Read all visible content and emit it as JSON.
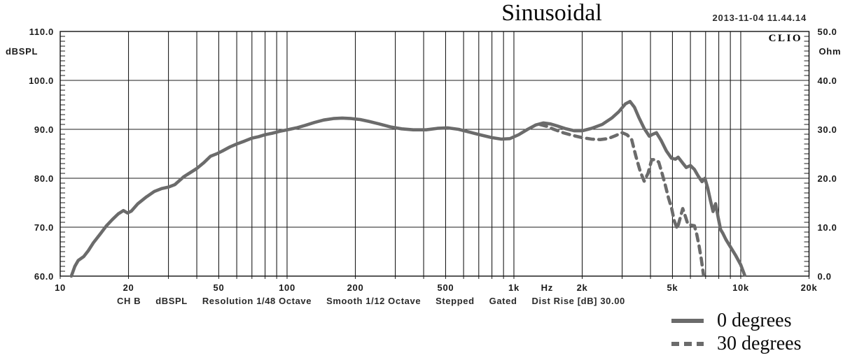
{
  "header": {
    "title": "Sinusoidal",
    "datetime": "2013-11-04 11.44.14",
    "brand": "CLIO"
  },
  "status_bar": {
    "segments": [
      "CH B",
      "dBSPL",
      "Resolution 1/48 Octave",
      "Smooth 1/12 Octave",
      "Stepped",
      "Gated",
      "Dist Rise [dB] 30.00"
    ]
  },
  "legend": {
    "items": [
      {
        "label": "0 degrees",
        "style": "solid"
      },
      {
        "label": "30 degrees",
        "style": "dashed"
      }
    ]
  },
  "chart_data": {
    "type": "line",
    "title": "Sinusoidal",
    "x_axis": {
      "scale": "log",
      "min": 10,
      "max": 20000,
      "unit": "Hz",
      "gridlines": [
        20,
        30,
        40,
        50,
        60,
        70,
        80,
        90,
        100,
        200,
        300,
        400,
        500,
        600,
        700,
        800,
        900,
        1000,
        2000,
        3000,
        4000,
        5000,
        6000,
        7000,
        8000,
        9000,
        10000,
        20000
      ],
      "tick_labels": [
        {
          "f": 10,
          "label": "10"
        },
        {
          "f": 20,
          "label": "20"
        },
        {
          "f": 50,
          "label": "50"
        },
        {
          "f": 100,
          "label": "100"
        },
        {
          "f": 200,
          "label": "200"
        },
        {
          "f": 500,
          "label": "500"
        },
        {
          "f": 1000,
          "label": "1k"
        },
        {
          "f": 1400,
          "label": "Hz"
        },
        {
          "f": 2000,
          "label": "2k"
        },
        {
          "f": 5000,
          "label": "5k"
        },
        {
          "f": 10000,
          "label": "10k"
        },
        {
          "f": 20000,
          "label": "20k"
        }
      ]
    },
    "y_left": {
      "label": "dBSPL",
      "min": 60,
      "max": 110,
      "major_step": 10,
      "minor_step": 1,
      "tick_labels": [
        {
          "v": 110,
          "label": "110.0"
        },
        {
          "v": 100,
          "label": "100.0"
        },
        {
          "v": 90,
          "label": "90.0"
        },
        {
          "v": 80,
          "label": "80.0"
        },
        {
          "v": 70,
          "label": "70.0"
        },
        {
          "v": 60,
          "label": "60.0"
        }
      ]
    },
    "y_right": {
      "label": "Ohm",
      "min": 0,
      "max": 50,
      "major_step": 10,
      "minor_step": 1,
      "tick_labels": [
        {
          "v": 50,
          "label": "50.0"
        },
        {
          "v": 40,
          "label": "40.0"
        },
        {
          "v": 30,
          "label": "30.0"
        },
        {
          "v": 20,
          "label": "20.0"
        },
        {
          "v": 10,
          "label": "10.0"
        },
        {
          "v": 0,
          "label": "0.0"
        }
      ]
    },
    "colors": {
      "curve": "#6b6b6b",
      "grid": "#1c1c1c",
      "border": "#111111"
    },
    "grid": true,
    "legend_position": "bottom-right",
    "series": [
      {
        "name": "0 degrees",
        "style": "solid",
        "points": [
          [
            11.2,
            60.0
          ],
          [
            11.6,
            62.0
          ],
          [
            12.0,
            63.2
          ],
          [
            12.7,
            64.0
          ],
          [
            13.3,
            65.2
          ],
          [
            14,
            66.8
          ],
          [
            15,
            68.6
          ],
          [
            16,
            70.3
          ],
          [
            17,
            71.6
          ],
          [
            18,
            72.7
          ],
          [
            19,
            73.4
          ],
          [
            19.8,
            72.9
          ],
          [
            20.6,
            73.3
          ],
          [
            22,
            74.8
          ],
          [
            24,
            76.2
          ],
          [
            26,
            77.3
          ],
          [
            28,
            77.9
          ],
          [
            30,
            78.2
          ],
          [
            32,
            78.7
          ],
          [
            33.5,
            79.5
          ],
          [
            35,
            80.3
          ],
          [
            37,
            81.0
          ],
          [
            40,
            82.0
          ],
          [
            43,
            83.2
          ],
          [
            46,
            84.5
          ],
          [
            49,
            85.0
          ],
          [
            52,
            85.6
          ],
          [
            56,
            86.4
          ],
          [
            60,
            87.0
          ],
          [
            65,
            87.6
          ],
          [
            70,
            88.2
          ],
          [
            75,
            88.5
          ],
          [
            80,
            88.9
          ],
          [
            86,
            89.2
          ],
          [
            93,
            89.6
          ],
          [
            100,
            89.9
          ],
          [
            110,
            90.3
          ],
          [
            120,
            90.8
          ],
          [
            132,
            91.4
          ],
          [
            145,
            91.9
          ],
          [
            160,
            92.2
          ],
          [
            175,
            92.3
          ],
          [
            192,
            92.2
          ],
          [
            210,
            92.0
          ],
          [
            230,
            91.6
          ],
          [
            255,
            91.1
          ],
          [
            285,
            90.5
          ],
          [
            320,
            90.1
          ],
          [
            360,
            89.9
          ],
          [
            410,
            89.9
          ],
          [
            460,
            90.2
          ],
          [
            510,
            90.3
          ],
          [
            570,
            90.0
          ],
          [
            640,
            89.4
          ],
          [
            720,
            88.8
          ],
          [
            800,
            88.3
          ],
          [
            880,
            88.0
          ],
          [
            960,
            88.1
          ],
          [
            1050,
            88.9
          ],
          [
            1150,
            90.0
          ],
          [
            1250,
            90.9
          ],
          [
            1350,
            91.3
          ],
          [
            1450,
            91.1
          ],
          [
            1550,
            90.7
          ],
          [
            1700,
            90.1
          ],
          [
            1850,
            89.7
          ],
          [
            2000,
            89.7
          ],
          [
            2200,
            90.2
          ],
          [
            2450,
            91.0
          ],
          [
            2700,
            92.3
          ],
          [
            2900,
            93.6
          ],
          [
            3100,
            95.2
          ],
          [
            3250,
            95.7
          ],
          [
            3400,
            94.5
          ],
          [
            3550,
            92.5
          ],
          [
            3750,
            90.2
          ],
          [
            3950,
            88.6
          ],
          [
            4100,
            89.0
          ],
          [
            4250,
            89.3
          ],
          [
            4450,
            87.8
          ],
          [
            4700,
            85.6
          ],
          [
            4950,
            84.1
          ],
          [
            5150,
            83.9
          ],
          [
            5300,
            84.3
          ],
          [
            5550,
            83.1
          ],
          [
            5750,
            82.2
          ],
          [
            6000,
            82.6
          ],
          [
            6250,
            81.8
          ],
          [
            6500,
            80.4
          ],
          [
            6750,
            79.3
          ],
          [
            6950,
            80.0
          ],
          [
            7150,
            78.0
          ],
          [
            7350,
            75.5
          ],
          [
            7550,
            73.2
          ],
          [
            7750,
            74.8
          ],
          [
            7950,
            72.0
          ],
          [
            8150,
            69.5
          ],
          [
            8350,
            68.7
          ],
          [
            8600,
            67.5
          ],
          [
            9000,
            66.0
          ],
          [
            9500,
            64.2
          ],
          [
            10000,
            62.3
          ],
          [
            10400,
            60.2
          ]
        ]
      },
      {
        "name": "30 degrees",
        "style": "dashed",
        "points": [
          [
            1300,
            91.0
          ],
          [
            1400,
            90.6
          ],
          [
            1500,
            90.0
          ],
          [
            1650,
            89.3
          ],
          [
            1800,
            88.8
          ],
          [
            2000,
            88.3
          ],
          [
            2200,
            88.0
          ],
          [
            2400,
            87.9
          ],
          [
            2600,
            88.1
          ],
          [
            2800,
            88.7
          ],
          [
            3000,
            89.3
          ],
          [
            3150,
            88.9
          ],
          [
            3300,
            88.0
          ],
          [
            3450,
            84.5
          ],
          [
            3600,
            81.5
          ],
          [
            3750,
            79.4
          ],
          [
            3900,
            81.0
          ],
          [
            4050,
            83.8
          ],
          [
            4200,
            83.8
          ],
          [
            4350,
            83.3
          ],
          [
            4500,
            81.0
          ],
          [
            4650,
            78.6
          ],
          [
            4800,
            76.0
          ],
          [
            4950,
            74.0
          ],
          [
            5100,
            71.2
          ],
          [
            5250,
            69.7
          ],
          [
            5400,
            71.8
          ],
          [
            5550,
            73.8
          ],
          [
            5700,
            72.2
          ],
          [
            5850,
            70.6
          ],
          [
            6050,
            70.4
          ],
          [
            6250,
            70.3
          ],
          [
            6400,
            68.5
          ],
          [
            6550,
            66.2
          ],
          [
            6700,
            63.5
          ],
          [
            6850,
            60.3
          ]
        ]
      }
    ]
  }
}
